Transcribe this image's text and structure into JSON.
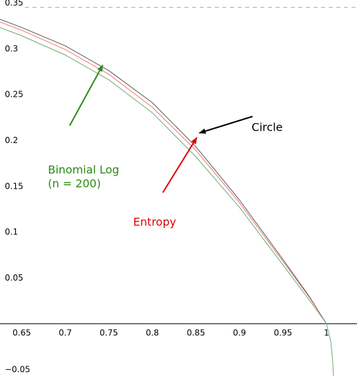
{
  "chart_data": {
    "type": "line",
    "title": "",
    "xlabel": "",
    "ylabel": "",
    "xlim": [
      0.625,
      1.035
    ],
    "ylim": [
      -0.057,
      0.353
    ],
    "x_ticks": [
      0.65,
      0.7,
      0.75,
      0.8,
      0.85,
      0.9,
      0.95,
      1
    ],
    "x_tick_labels": [
      "0.65",
      "0.7",
      "0.75",
      "0.8",
      "0.85",
      "0.9",
      "0.95",
      "1"
    ],
    "y_ticks": [
      -0.05,
      0.05,
      0.1,
      0.15,
      0.2,
      0.25,
      0.3,
      0.35
    ],
    "y_tick_labels": [
      "−0.05",
      "0.05",
      "0.1",
      "0.15",
      "0.2",
      "0.25",
      "0.3",
      "0.35"
    ],
    "grid": false,
    "reference_line": {
      "y": 0.345,
      "style": "dashed",
      "color": "#aaaaaa"
    },
    "series": [
      {
        "name": "Circle",
        "color": "#4d5a58",
        "x": [
          0.625,
          0.65,
          0.7,
          0.75,
          0.8,
          0.85,
          0.9,
          0.95,
          0.98,
          1.0
        ],
        "y": [
          0.332,
          0.323,
          0.303,
          0.276,
          0.241,
          0.193,
          0.135,
          0.07,
          0.03,
          0.0
        ]
      },
      {
        "name": "Entropy",
        "color": "#ff6f6f",
        "x": [
          0.625,
          0.65,
          0.7,
          0.75,
          0.8,
          0.85,
          0.9,
          0.95,
          0.98,
          1.0
        ],
        "y": [
          0.329,
          0.32,
          0.299,
          0.272,
          0.236,
          0.189,
          0.132,
          0.068,
          0.029,
          0.0
        ]
      },
      {
        "name": "Binomial Log\n(n = 200)",
        "color": "#66aa77",
        "x": [
          0.625,
          0.65,
          0.7,
          0.75,
          0.8,
          0.85,
          0.9,
          0.95,
          0.98,
          1.0,
          1.005,
          1.007,
          1.008
        ],
        "y": [
          0.323,
          0.314,
          0.293,
          0.266,
          0.23,
          0.182,
          0.127,
          0.064,
          0.026,
          0.0,
          -0.02,
          -0.04,
          -0.057
        ]
      }
    ],
    "annotations": [
      {
        "text": "Circle",
        "color": "#000000",
        "lines": [
          "Circle"
        ],
        "label_xy": [
          0.914,
          0.21
        ],
        "arrow_from": [
          0.915,
          0.226
        ],
        "arrow_to": [
          0.854,
          0.208
        ]
      },
      {
        "text": "Entropy",
        "color": "#e00000",
        "lines": [
          "Entropy"
        ],
        "label_xy": [
          0.778,
          0.107
        ],
        "arrow_from": [
          0.812,
          0.143
        ],
        "arrow_to": [
          0.851,
          0.203
        ]
      },
      {
        "text": "Binomial Log (n = 200)",
        "color": "#2a8a12",
        "lines": [
          "Binomial Log",
          "(n = 200)"
        ],
        "label_xy": [
          0.68,
          0.164
        ],
        "arrow_from": [
          0.705,
          0.216
        ],
        "arrow_to": [
          0.743,
          0.282
        ]
      }
    ]
  }
}
